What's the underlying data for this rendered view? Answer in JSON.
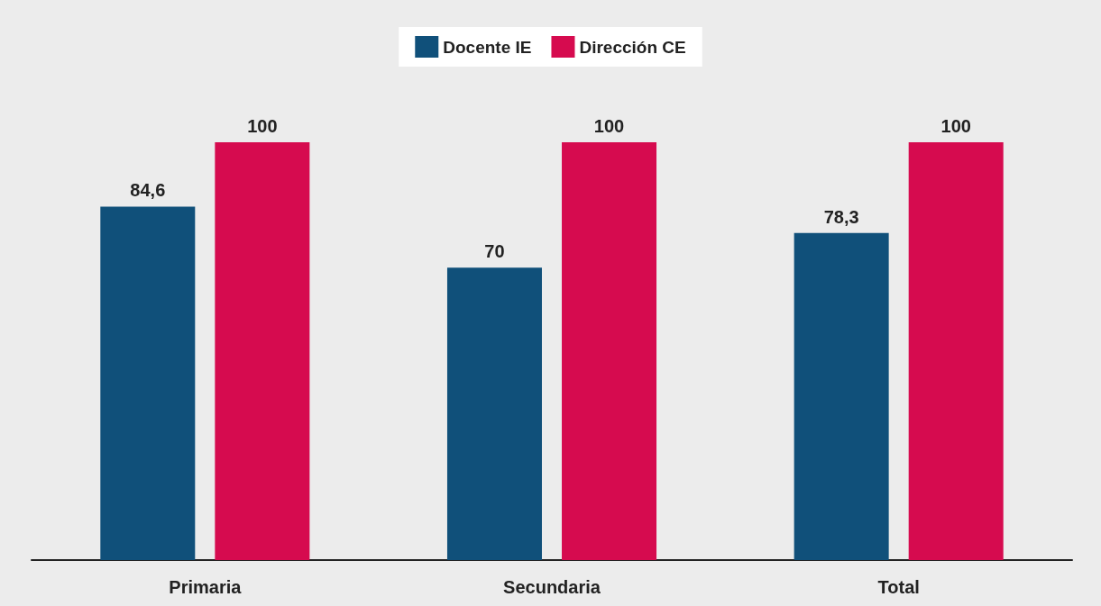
{
  "chart_data": {
    "type": "bar",
    "categories": [
      "Primaria",
      "Secundaria",
      "Total"
    ],
    "series": [
      {
        "name": "Docente IE",
        "color": "#10507a",
        "values": [
          84.6,
          70,
          78.3
        ],
        "value_labels": [
          "84,6",
          "70",
          "78,3"
        ]
      },
      {
        "name": "Dirección CE",
        "color": "#d60b4f",
        "values": [
          100,
          100,
          100
        ],
        "value_labels": [
          "100",
          "100",
          "100"
        ]
      }
    ],
    "legend": "top"
  }
}
